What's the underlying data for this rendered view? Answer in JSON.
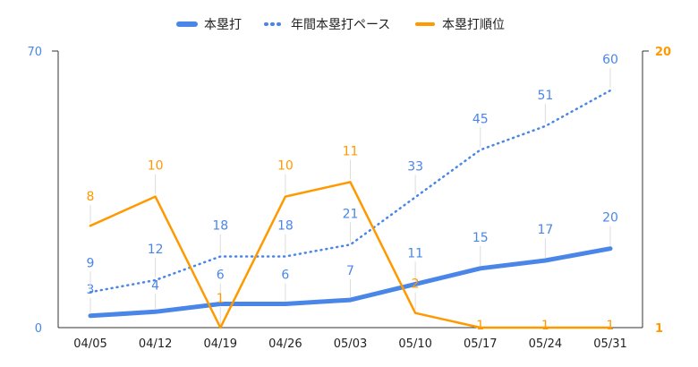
{
  "chart_data": {
    "type": "line",
    "categories": [
      "04/05",
      "04/12",
      "04/19",
      "04/26",
      "05/03",
      "05/10",
      "05/17",
      "05/24",
      "05/31"
    ],
    "series": [
      {
        "name": "本塁打",
        "axis": "left",
        "style": "solid-thick",
        "color": "#4a86e8",
        "values": [
          3,
          4,
          6,
          6,
          7,
          11,
          15,
          17,
          20
        ]
      },
      {
        "name": "年間本塁打ペース",
        "axis": "left",
        "style": "dotted",
        "color": "#4a86e8",
        "values": [
          9,
          12,
          18,
          18,
          21,
          33,
          45,
          51,
          60
        ]
      },
      {
        "name": "本塁打順位",
        "axis": "right",
        "style": "solid",
        "color": "#ff9900",
        "values": [
          8,
          10,
          1,
          10,
          11,
          2,
          1,
          1,
          1
        ]
      }
    ],
    "y_left": {
      "min": 0,
      "max": 70,
      "ticks": [
        "0",
        "70"
      ],
      "color": "#4a86e8"
    },
    "y_right": {
      "min": 1,
      "max": 20,
      "ticks": [
        "1",
        "20"
      ],
      "color": "#ff9900"
    },
    "legend_position": "top",
    "grid": false
  }
}
